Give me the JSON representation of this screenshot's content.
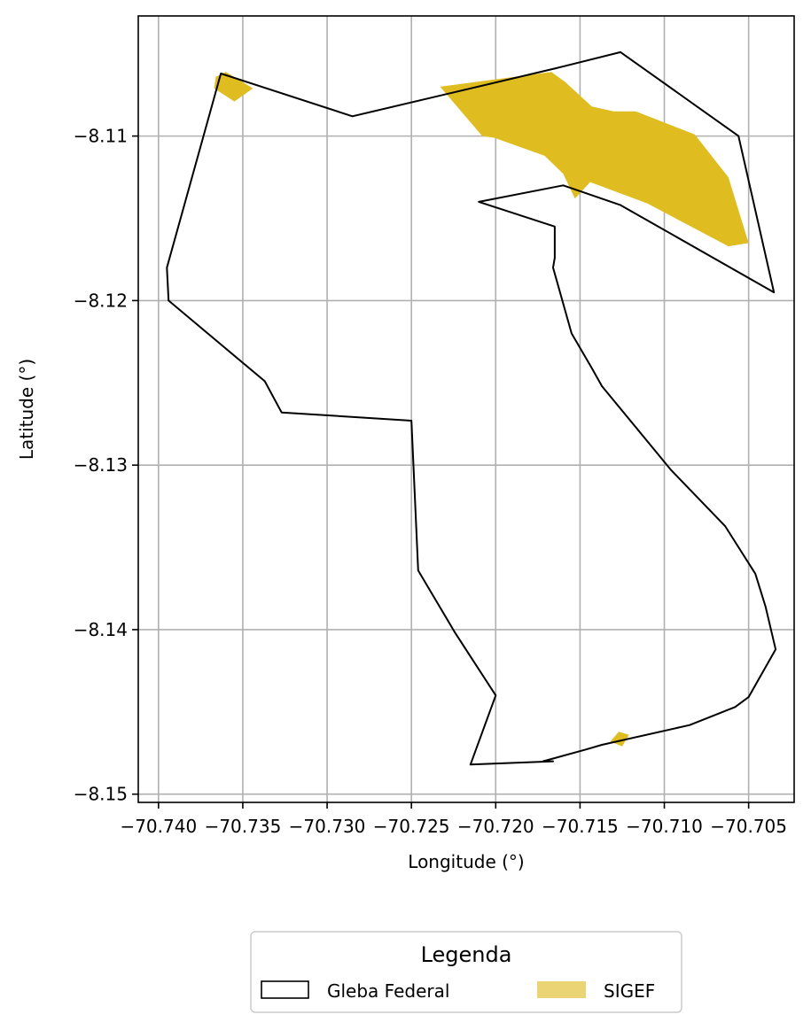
{
  "chart_data": {
    "type": "map",
    "xlabel": "Longitude (°)",
    "ylabel": "Latitude (°)",
    "xlim": [
      -70.7412,
      -70.7023
    ],
    "ylim": [
      -8.1505,
      -8.1027
    ],
    "xticks": [
      -70.74,
      -70.735,
      -70.73,
      -70.725,
      -70.72,
      -70.715,
      -70.71,
      -70.705
    ],
    "xtick_labels": [
      "−70.740",
      "−70.735",
      "−70.730",
      "−70.725",
      "−70.720",
      "−70.715",
      "−70.710",
      "−70.705"
    ],
    "yticks": [
      -8.11,
      -8.12,
      -8.13,
      -8.14,
      -8.15
    ],
    "ytick_labels": [
      "−8.11",
      "−8.12",
      "−8.13",
      "−8.14",
      "−8.15"
    ],
    "grid": true,
    "legend": {
      "title": "Legenda",
      "placement": "bottom-center, below plot",
      "entries": [
        {
          "label": "Gleba Federal",
          "style": "outline",
          "color": "#000000"
        },
        {
          "label": "SIGEF",
          "style": "fill",
          "color": "#ebd473"
        }
      ]
    },
    "colors": {
      "gleba_outline": "#000000",
      "sigef_fill": "#dfbd20",
      "grid": "#b0b0b0"
    },
    "series": [
      {
        "name": "Gleba Federal",
        "kind": "polygon-outline",
        "coords": [
          [
            -70.7363,
            -8.1062
          ],
          [
            -70.7285,
            -8.1088
          ],
          [
            -70.7165,
            -8.1059
          ],
          [
            -70.7126,
            -8.1049
          ],
          [
            -70.7056,
            -8.11
          ],
          [
            -70.7035,
            -8.1195
          ],
          [
            -70.7126,
            -8.1142
          ],
          [
            -70.716,
            -8.113
          ],
          [
            -70.721,
            -8.114
          ],
          [
            -70.7165,
            -8.1155
          ],
          [
            -70.7165,
            -8.1174
          ],
          [
            -70.7166,
            -8.118
          ],
          [
            -70.7155,
            -8.122
          ],
          [
            -70.7143,
            -8.1241
          ],
          [
            -70.7137,
            -8.1252
          ],
          [
            -70.7096,
            -8.1303
          ],
          [
            -70.7064,
            -8.1337
          ],
          [
            -70.7046,
            -8.1366
          ],
          [
            -70.704,
            -8.1386
          ],
          [
            -70.7034,
            -8.1412
          ],
          [
            -70.705,
            -8.1441
          ],
          [
            -70.7058,
            -8.1447
          ],
          [
            -70.7085,
            -8.1458
          ],
          [
            -70.7137,
            -8.147
          ],
          [
            -70.7147,
            -8.1473
          ],
          [
            -70.7172,
            -8.148
          ],
          [
            -70.7166,
            -8.148
          ],
          [
            -70.7215,
            -8.1482
          ],
          [
            -70.72,
            -8.144
          ],
          [
            -70.7224,
            -8.1402
          ],
          [
            -70.7246,
            -8.1364
          ],
          [
            -70.725,
            -8.1273
          ],
          [
            -70.7327,
            -8.1268
          ],
          [
            -70.7337,
            -8.1249
          ],
          [
            -70.7394,
            -8.12
          ],
          [
            -70.7395,
            -8.118
          ]
        ]
      },
      {
        "name": "SIGEF",
        "kind": "polygon-fill",
        "polygons": [
          [
            [
              -70.7366,
              -8.1064
            ],
            [
              -70.736,
              -8.1061
            ],
            [
              -70.7344,
              -8.1071
            ],
            [
              -70.7355,
              -8.1079
            ],
            [
              -70.7367,
              -8.1071
            ]
          ],
          [
            [
              -70.7233,
              -8.107
            ],
            [
              -70.7167,
              -8.1061
            ],
            [
              -70.7159,
              -8.1067
            ],
            [
              -70.7143,
              -8.1082
            ],
            [
              -70.713,
              -8.1085
            ],
            [
              -70.7117,
              -8.1085
            ],
            [
              -70.7082,
              -8.1099
            ],
            [
              -70.7062,
              -8.1125
            ],
            [
              -70.705,
              -8.1165
            ],
            [
              -70.7062,
              -8.1167
            ],
            [
              -70.711,
              -8.1141
            ],
            [
              -70.7144,
              -8.1128
            ],
            [
              -70.7153,
              -8.1138
            ],
            [
              -70.716,
              -8.1123
            ],
            [
              -70.7171,
              -8.1112
            ],
            [
              -70.7201,
              -8.1101
            ],
            [
              -70.7208,
              -8.11
            ]
          ],
          [
            [
              -70.7132,
              -8.1468
            ],
            [
              -70.7127,
              -8.1462
            ],
            [
              -70.7121,
              -8.1464
            ],
            [
              -70.7125,
              -8.1471
            ]
          ]
        ]
      }
    ]
  }
}
